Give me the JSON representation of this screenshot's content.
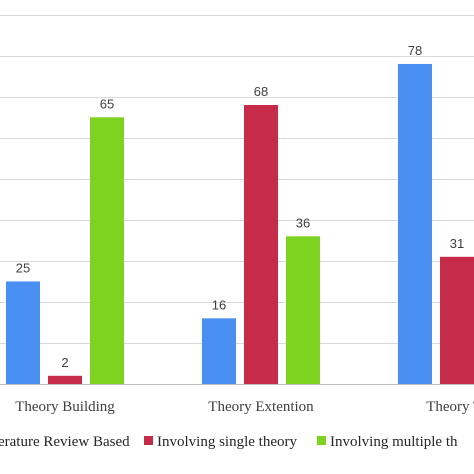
{
  "chart_data": {
    "type": "bar",
    "title": "",
    "xlabel": "",
    "ylabel": "",
    "categories": [
      "Theory Building",
      "Theory Extention",
      "Theory Te"
    ],
    "series": [
      {
        "name": "erature Review Based",
        "color": "#4a8ff2",
        "values": [
          25,
          16,
          78
        ]
      },
      {
        "name": "Involving single theory",
        "color": "#c62c4a",
        "values": [
          2,
          68,
          31
        ]
      },
      {
        "name": "Involving multiple th",
        "color": "#7ed321",
        "values": [
          65,
          36,
          null
        ]
      }
    ],
    "ylim": [
      0,
      90
    ],
    "grid": true,
    "legend": "bottom"
  }
}
